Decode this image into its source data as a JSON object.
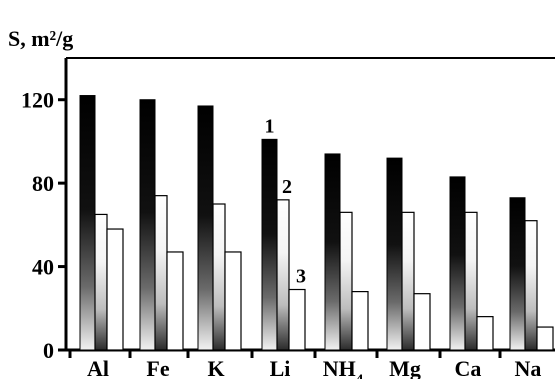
{
  "chart_data": {
    "type": "bar",
    "title": "",
    "ylabel": "S, m²/g",
    "xlabel": "",
    "ylim": [
      0,
      140
    ],
    "yticks": [
      "0",
      "40",
      "80",
      "120"
    ],
    "categories": [
      "Al",
      "Fe",
      "K",
      "Li",
      "NH4",
      "Mg",
      "Ca",
      "Na"
    ],
    "series": [
      {
        "name": "1",
        "values": [
          122,
          120,
          117,
          101,
          94,
          92,
          83,
          73
        ],
        "fill": "gradient-dark"
      },
      {
        "name": "2",
        "values": [
          65,
          74,
          70,
          72,
          66,
          66,
          66,
          62
        ],
        "fill": "gradient-light"
      },
      {
        "name": "3",
        "values": [
          58,
          47,
          47,
          29,
          28,
          27,
          16,
          11
        ],
        "fill": "white"
      }
    ],
    "series_labels_position": "above Li bars",
    "grid": false
  }
}
